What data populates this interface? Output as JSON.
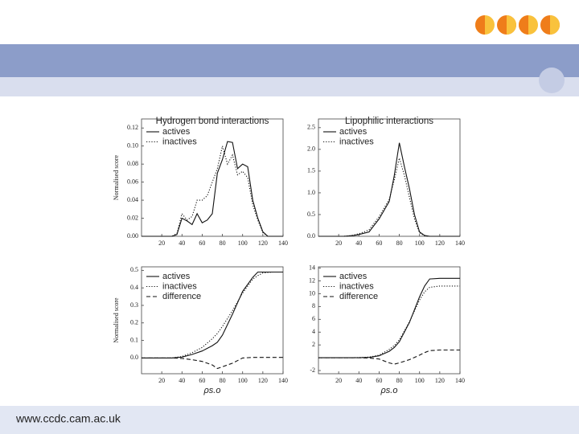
{
  "footer": {
    "url": "www.ccdc.cam.ac.uk"
  },
  "chart_data": [
    {
      "type": "line",
      "title": "Hydrogen bond interactions",
      "y_label": "Normalised score",
      "x": [
        0,
        5,
        10,
        15,
        20,
        25,
        30,
        35,
        40,
        45,
        50,
        55,
        60,
        65,
        70,
        75,
        80,
        85,
        90,
        95,
        100,
        105,
        110,
        115,
        120,
        125,
        130,
        135,
        140
      ],
      "series": [
        {
          "name": "actives",
          "color": "#111",
          "dash": "solid",
          "values": [
            0,
            0,
            0,
            0,
            0,
            0,
            0,
            0.002,
            0.02,
            0.017,
            0.013,
            0.025,
            0.015,
            0.018,
            0.025,
            0.07,
            0.085,
            0.105,
            0.104,
            0.075,
            0.08,
            0.077,
            0.04,
            0.02,
            0.005,
            0,
            0,
            0,
            0
          ]
        },
        {
          "name": "inactives",
          "color": "#111",
          "dash": "dotted",
          "values": [
            0,
            0,
            0,
            0,
            0,
            0,
            0,
            0.003,
            0.025,
            0.018,
            0.022,
            0.04,
            0.04,
            0.045,
            0.06,
            0.075,
            0.1,
            0.08,
            0.09,
            0.068,
            0.072,
            0.065,
            0.035,
            0.018,
            0.004,
            0,
            0,
            0,
            0
          ]
        }
      ],
      "xlim": [
        0,
        140
      ],
      "xticks": [
        20,
        40,
        60,
        80,
        100,
        120,
        140
      ],
      "ylim": [
        0,
        0.13
      ],
      "yticks": [
        {
          "value": 0,
          "label": "0.00"
        },
        {
          "value": 0.02,
          "label": "0.02"
        },
        {
          "value": 0.04,
          "label": "0.04"
        },
        {
          "value": 0.06,
          "label": "0.06"
        },
        {
          "value": 0.08,
          "label": "0.08"
        },
        {
          "value": 0.1,
          "label": "0.10"
        },
        {
          "value": 0.12,
          "label": "0.12"
        }
      ]
    },
    {
      "type": "line",
      "title": "Lipophilic interactions",
      "x": [
        0,
        5,
        10,
        15,
        20,
        25,
        30,
        35,
        40,
        45,
        50,
        55,
        60,
        65,
        70,
        75,
        80,
        85,
        90,
        95,
        100,
        105,
        110,
        115,
        120,
        125,
        130,
        135,
        140
      ],
      "series": [
        {
          "name": "actives",
          "color": "#111",
          "dash": "solid",
          "values": [
            0,
            0,
            0,
            0,
            0,
            0,
            0.01,
            0.02,
            0.04,
            0.07,
            0.1,
            0.25,
            0.4,
            0.6,
            0.8,
            1.4,
            2.15,
            1.6,
            1.1,
            0.5,
            0.1,
            0.02,
            0,
            0,
            0,
            0,
            0,
            0,
            0
          ]
        },
        {
          "name": "inactives",
          "color": "#111",
          "dash": "dotted",
          "values": [
            0,
            0,
            0,
            0,
            0,
            0,
            0.01,
            0.03,
            0.06,
            0.1,
            0.15,
            0.3,
            0.45,
            0.65,
            0.85,
            1.3,
            1.8,
            1.4,
            0.9,
            0.4,
            0.08,
            0.01,
            0,
            0,
            0,
            0,
            0,
            0,
            0
          ]
        }
      ],
      "xlim": [
        0,
        140
      ],
      "xticks": [
        20,
        40,
        60,
        80,
        100,
        120,
        140
      ],
      "ylim": [
        0,
        2.7
      ],
      "yticks": [
        {
          "value": 0,
          "label": "0.0"
        },
        {
          "value": 0.5,
          "label": "0.5"
        },
        {
          "value": 1,
          "label": "1.0"
        },
        {
          "value": 1.5,
          "label": "1.5"
        },
        {
          "value": 2,
          "label": "2.0"
        },
        {
          "value": 2.5,
          "label": "2.5"
        }
      ]
    },
    {
      "type": "line",
      "y_label": "Normalised score",
      "x_label": "ρs.o",
      "x": [
        0,
        10,
        20,
        30,
        40,
        50,
        60,
        70,
        75,
        80,
        90,
        100,
        110,
        115,
        120,
        130,
        140
      ],
      "series": [
        {
          "name": "actives",
          "color": "#111",
          "dash": "solid",
          "values": [
            0,
            0,
            0,
            0,
            0.005,
            0.02,
            0.04,
            0.07,
            0.09,
            0.13,
            0.25,
            0.38,
            0.46,
            0.49,
            0.49,
            0.49,
            0.49
          ]
        },
        {
          "name": "inactives",
          "color": "#111",
          "dash": "dotted",
          "values": [
            0,
            0,
            0,
            0,
            0.008,
            0.03,
            0.06,
            0.11,
            0.14,
            0.18,
            0.27,
            0.37,
            0.45,
            0.47,
            0.485,
            0.49,
            0.49
          ]
        },
        {
          "name": "difference",
          "color": "#111",
          "dash": "dashed",
          "values": [
            0,
            0,
            0,
            0,
            -0.003,
            -0.01,
            -0.02,
            -0.04,
            -0.06,
            -0.05,
            -0.03,
            0,
            0.003,
            0.003,
            0.003,
            0.003,
            0.003
          ]
        }
      ],
      "xlim": [
        0,
        140
      ],
      "xticks": [
        20,
        40,
        60,
        80,
        100,
        120,
        140
      ],
      "ylim": [
        -0.09,
        0.52
      ],
      "yticks": [
        {
          "value": 0,
          "label": "0.0"
        },
        0.1,
        0.2,
        0.3,
        0.4,
        0.5
      ]
    },
    {
      "type": "line",
      "x_label": "ρs.o",
      "x": [
        0,
        10,
        20,
        30,
        40,
        50,
        60,
        70,
        75,
        80,
        90,
        100,
        105,
        110,
        120,
        130,
        140
      ],
      "series": [
        {
          "name": "actives",
          "color": "#111",
          "dash": "solid",
          "values": [
            0,
            0,
            0,
            0,
            0,
            0.05,
            0.3,
            1,
            1.6,
            2.5,
            5.5,
            9.5,
            11.2,
            12.3,
            12.4,
            12.4,
            12.4
          ]
        },
        {
          "name": "inactives",
          "color": "#111",
          "dash": "dotted",
          "values": [
            0,
            0,
            0,
            0,
            0.02,
            0.1,
            0.4,
            1.3,
            1.9,
            2.8,
            5.6,
            9,
            10.3,
            11,
            11.2,
            11.2,
            11.2
          ]
        },
        {
          "name": "difference",
          "color": "#111",
          "dash": "dashed",
          "values": [
            0,
            0,
            0,
            0,
            0,
            -0.05,
            -0.2,
            -0.8,
            -1,
            -0.8,
            -0.3,
            0.4,
            0.8,
            1.1,
            1.2,
            1.2,
            1.2
          ]
        }
      ],
      "xlim": [
        0,
        140
      ],
      "xticks": [
        20,
        40,
        60,
        80,
        100,
        120,
        140
      ],
      "ylim": [
        -2.5,
        14.2
      ],
      "yticks": [
        -2,
        2,
        4,
        6,
        8,
        10,
        12,
        14
      ]
    }
  ]
}
